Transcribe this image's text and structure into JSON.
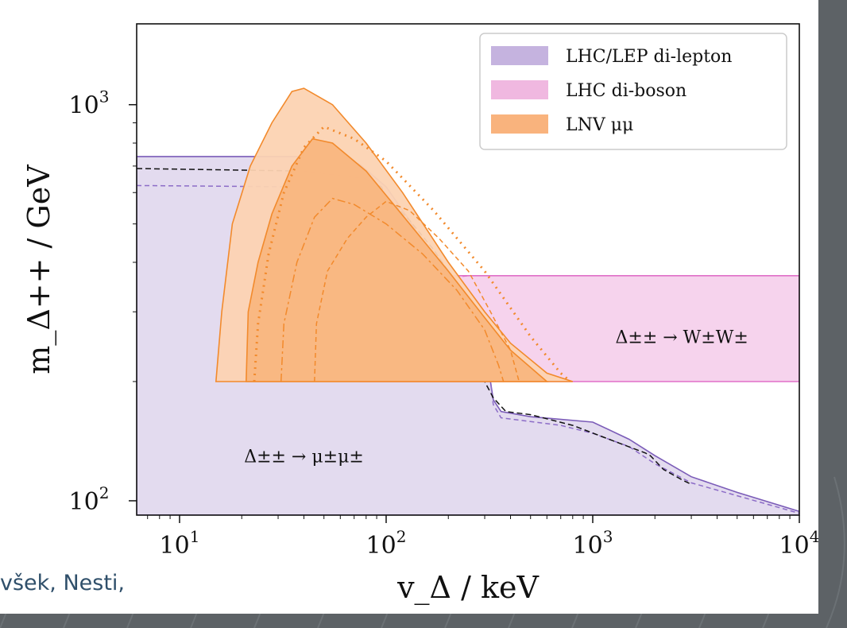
{
  "caption": "všek, Nesti,",
  "chart_data": {
    "type": "area",
    "title": "",
    "xlabel": "v_Δ / keV",
    "ylabel": "m_Δ++ / GeV",
    "xscale": "log",
    "yscale": "log",
    "xlim": [
      6.2,
      10000
    ],
    "ylim": [
      92,
      1600
    ],
    "x_ticks": [
      {
        "value": 10,
        "base": "10",
        "exp": "1"
      },
      {
        "value": 100,
        "base": "10",
        "exp": "2"
      },
      {
        "value": 1000,
        "base": "10",
        "exp": "3"
      },
      {
        "value": 10000,
        "base": "10",
        "exp": "4"
      }
    ],
    "y_ticks": [
      {
        "value": 100,
        "base": "10",
        "exp": "2"
      },
      {
        "value": 1000,
        "base": "10",
        "exp": "3"
      }
    ],
    "y_minor_ticks": [
      200,
      300,
      400,
      500,
      600,
      700,
      800,
      900
    ],
    "x_minor_ticks": [
      7,
      8,
      9,
      20,
      30,
      40,
      50,
      60,
      70,
      80,
      90,
      200,
      300,
      400,
      500,
      600,
      700,
      800,
      900,
      2000,
      3000,
      4000,
      5000,
      6000,
      7000,
      8000,
      9000
    ],
    "grid": false,
    "legend": {
      "position": "top-right",
      "entries": [
        {
          "label": "LHC/LEP di-lepton",
          "color": "#c5b3df"
        },
        {
          "label": "LHC di-boson",
          "color": "#f0b8e0"
        },
        {
          "label": "LNV μμ",
          "color": "#f9b37d"
        }
      ]
    },
    "annotations": [
      {
        "text": "Δ±± → W±W±",
        "x": 2700,
        "y": 250
      },
      {
        "text": "Δ±± → μ±μ±",
        "x": 40,
        "y": 125
      }
    ],
    "series": [
      {
        "name": "LHC/LEP di-lepton",
        "kind": "fill",
        "fill": "#e2d9ee",
        "stroke": "#7b5cb8",
        "points": [
          [
            6.2,
            740
          ],
          [
            60,
            740
          ],
          [
            75,
            705
          ],
          [
            100,
            620
          ],
          [
            130,
            510
          ],
          [
            170,
            400
          ],
          [
            200,
            350
          ],
          [
            230,
            305
          ],
          [
            260,
            265
          ],
          [
            300,
            225
          ],
          [
            320,
            200
          ],
          [
            330,
            180
          ],
          [
            360,
            168
          ],
          [
            500,
            163
          ],
          [
            1000,
            158
          ],
          [
            1500,
            143
          ],
          [
            2000,
            130
          ],
          [
            3000,
            115
          ],
          [
            5000,
            105
          ],
          [
            10000,
            94
          ],
          [
            10000,
            92
          ],
          [
            6.2,
            92
          ]
        ]
      },
      {
        "name": "LHC/LEP di-lepton (dashed)",
        "kind": "line",
        "stroke": "#8c6cc7",
        "dash": "6,4",
        "points": [
          [
            6.2,
            625
          ],
          [
            40,
            620
          ],
          [
            70,
            590
          ],
          [
            100,
            520
          ],
          [
            150,
            420
          ],
          [
            200,
            350
          ],
          [
            250,
            305
          ],
          [
            300,
            255
          ],
          [
            320,
            200
          ],
          [
            330,
            175
          ],
          [
            360,
            162
          ],
          [
            700,
            155
          ],
          [
            1000,
            148
          ],
          [
            1500,
            137
          ],
          [
            2000,
            124
          ],
          [
            3000,
            111
          ],
          [
            5000,
            103
          ],
          [
            10000,
            93
          ]
        ]
      },
      {
        "name": "di-lepton (black dashed)",
        "kind": "line",
        "stroke": "#111111",
        "dash": "7,4",
        "points": [
          [
            6.2,
            690
          ],
          [
            40,
            680
          ],
          [
            80,
            650
          ],
          [
            95,
            620
          ],
          [
            100,
            580
          ],
          [
            110,
            560
          ],
          [
            130,
            510
          ],
          [
            170,
            430
          ],
          [
            200,
            380
          ],
          [
            250,
            330
          ],
          [
            280,
            290
          ],
          [
            290,
            265
          ],
          [
            260,
            258
          ],
          [
            240,
            258
          ],
          [
            300,
            200
          ],
          [
            330,
            182
          ],
          [
            380,
            168
          ],
          [
            500,
            165
          ],
          [
            800,
            155
          ],
          [
            1200,
            143
          ],
          [
            1800,
            132
          ],
          [
            1900,
            130
          ],
          [
            2200,
            120
          ],
          [
            2700,
            113
          ],
          [
            3000,
            110
          ]
        ]
      },
      {
        "name": "LHC di-boson",
        "kind": "fill",
        "fill": "#f6d1ec",
        "stroke": "#e070c8",
        "points": [
          [
            75,
            200
          ],
          [
            74,
            240
          ],
          [
            78,
            280
          ],
          [
            90,
            320
          ],
          [
            120,
            350
          ],
          [
            180,
            370
          ],
          [
            10000,
            370
          ],
          [
            10000,
            200
          ]
        ]
      },
      {
        "name": "LHC di-boson (dashed)",
        "kind": "line",
        "stroke": "#e070c8",
        "dash": "6,4",
        "points": [
          [
            88,
            200
          ],
          [
            88,
            250
          ],
          [
            95,
            290
          ],
          [
            115,
            325
          ],
          [
            150,
            350
          ],
          [
            200,
            365
          ],
          [
            250,
            370
          ]
        ]
      },
      {
        "name": "LNV μμ (outer)",
        "kind": "fill",
        "fill": "#fcd3b2",
        "stroke": "#f28a2c",
        "points": [
          [
            15,
            200
          ],
          [
            16,
            300
          ],
          [
            18,
            500
          ],
          [
            22,
            700
          ],
          [
            28,
            900
          ],
          [
            35,
            1080
          ],
          [
            40,
            1100
          ],
          [
            55,
            1000
          ],
          [
            80,
            800
          ],
          [
            120,
            600
          ],
          [
            200,
            400
          ],
          [
            300,
            300
          ],
          [
            400,
            250
          ],
          [
            600,
            210
          ],
          [
            800,
            200
          ]
        ]
      },
      {
        "name": "LNV μμ (inner)",
        "kind": "fill",
        "fill": "#f9b67f",
        "stroke": "#f28a2c",
        "points": [
          [
            21,
            200
          ],
          [
            21.5,
            300
          ],
          [
            24,
            400
          ],
          [
            28,
            530
          ],
          [
            35,
            700
          ],
          [
            44,
            820
          ],
          [
            55,
            800
          ],
          [
            80,
            680
          ],
          [
            130,
            500
          ],
          [
            200,
            380
          ],
          [
            300,
            290
          ],
          [
            400,
            240
          ],
          [
            600,
            200
          ]
        ]
      },
      {
        "name": "LNV μμ (dotted)",
        "kind": "line",
        "stroke": "#f28a2c",
        "dash": "2,6",
        "width": 3,
        "points": [
          [
            23,
            200
          ],
          [
            24,
            280
          ],
          [
            27,
            420
          ],
          [
            32,
            600
          ],
          [
            40,
            780
          ],
          [
            50,
            880
          ],
          [
            70,
            820
          ],
          [
            100,
            720
          ],
          [
            170,
            540
          ],
          [
            300,
            380
          ],
          [
            500,
            260
          ],
          [
            700,
            210
          ],
          [
            780,
            200
          ]
        ]
      },
      {
        "name": "LNV μμ (dash-dot)",
        "kind": "line",
        "stroke": "#f28a2c",
        "dash": "10,4,3,4",
        "points": [
          [
            31,
            200
          ],
          [
            32,
            280
          ],
          [
            37,
            400
          ],
          [
            45,
            520
          ],
          [
            55,
            580
          ],
          [
            70,
            560
          ],
          [
            100,
            500
          ],
          [
            150,
            420
          ],
          [
            220,
            340
          ],
          [
            300,
            270
          ],
          [
            350,
            220
          ],
          [
            370,
            200
          ]
        ]
      },
      {
        "name": "LNV μμ (inner dashed)",
        "kind": "line",
        "stroke": "#f28a2c",
        "dash": "6,4",
        "points": [
          [
            45,
            200
          ],
          [
            46,
            280
          ],
          [
            52,
            380
          ],
          [
            65,
            460
          ],
          [
            80,
            520
          ],
          [
            100,
            570
          ],
          [
            130,
            540
          ],
          [
            180,
            460
          ],
          [
            250,
            380
          ],
          [
            320,
            300
          ],
          [
            400,
            240
          ],
          [
            440,
            200
          ]
        ]
      }
    ]
  }
}
